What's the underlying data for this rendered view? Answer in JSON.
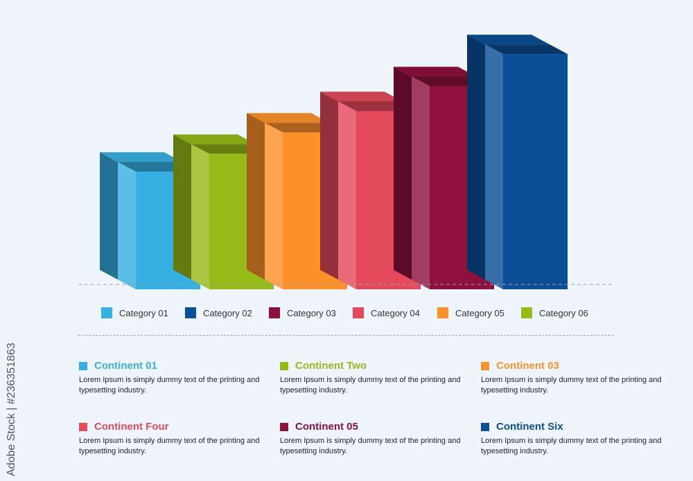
{
  "chart_data": {
    "type": "bar",
    "categories": [
      "Category 01",
      "Category 06",
      "Category 05",
      "Category 04",
      "Category 03",
      "Category 02"
    ],
    "values": [
      165,
      190,
      220,
      250,
      285,
      330
    ],
    "colors": [
      "#36b0e2",
      "#96bb17",
      "#ff912b",
      "#e44a5b",
      "#8e113d",
      "#0b4f98"
    ],
    "ylim": [
      0,
      340
    ],
    "grid": false
  },
  "legend": [
    {
      "label": "Category 01",
      "color": "#36b0e2"
    },
    {
      "label": "Category 02",
      "color": "#0b4f98"
    },
    {
      "label": "Category 03",
      "color": "#8e113d"
    },
    {
      "label": "Category 04",
      "color": "#e44a5b"
    },
    {
      "label": "Category 05",
      "color": "#ff912b"
    },
    {
      "label": "Category 06",
      "color": "#96bb17"
    }
  ],
  "cards": [
    {
      "title": "Continent 01",
      "color": "#36b0e2",
      "text": "Lorem Ipsum is simply dummy text of the printing and typesetting industry."
    },
    {
      "title": "Continent Two",
      "color": "#96bb17",
      "text": "Lorem Ipsum is simply dummy text of the printing and typesetting industry."
    },
    {
      "title": "Continent 03",
      "color": "#ff912b",
      "text": "Lorem Ipsum is simply dummy text of the printing and typesetting industry."
    },
    {
      "title": "Continent Four",
      "color": "#e44a5b",
      "text": "Lorem Ipsum is simply dummy text of the printing and typesetting industry."
    },
    {
      "title": "Continent 05",
      "color": "#8e113d",
      "text": "Lorem Ipsum is simply dummy text of the printing and typesetting industry."
    },
    {
      "title": "Continent Six",
      "color": "#0b4f98",
      "text": "Lorem Ipsum is simply dummy text of the printing and typesetting industry."
    }
  ],
  "side_credit": "Adobe Stock | #236351863"
}
